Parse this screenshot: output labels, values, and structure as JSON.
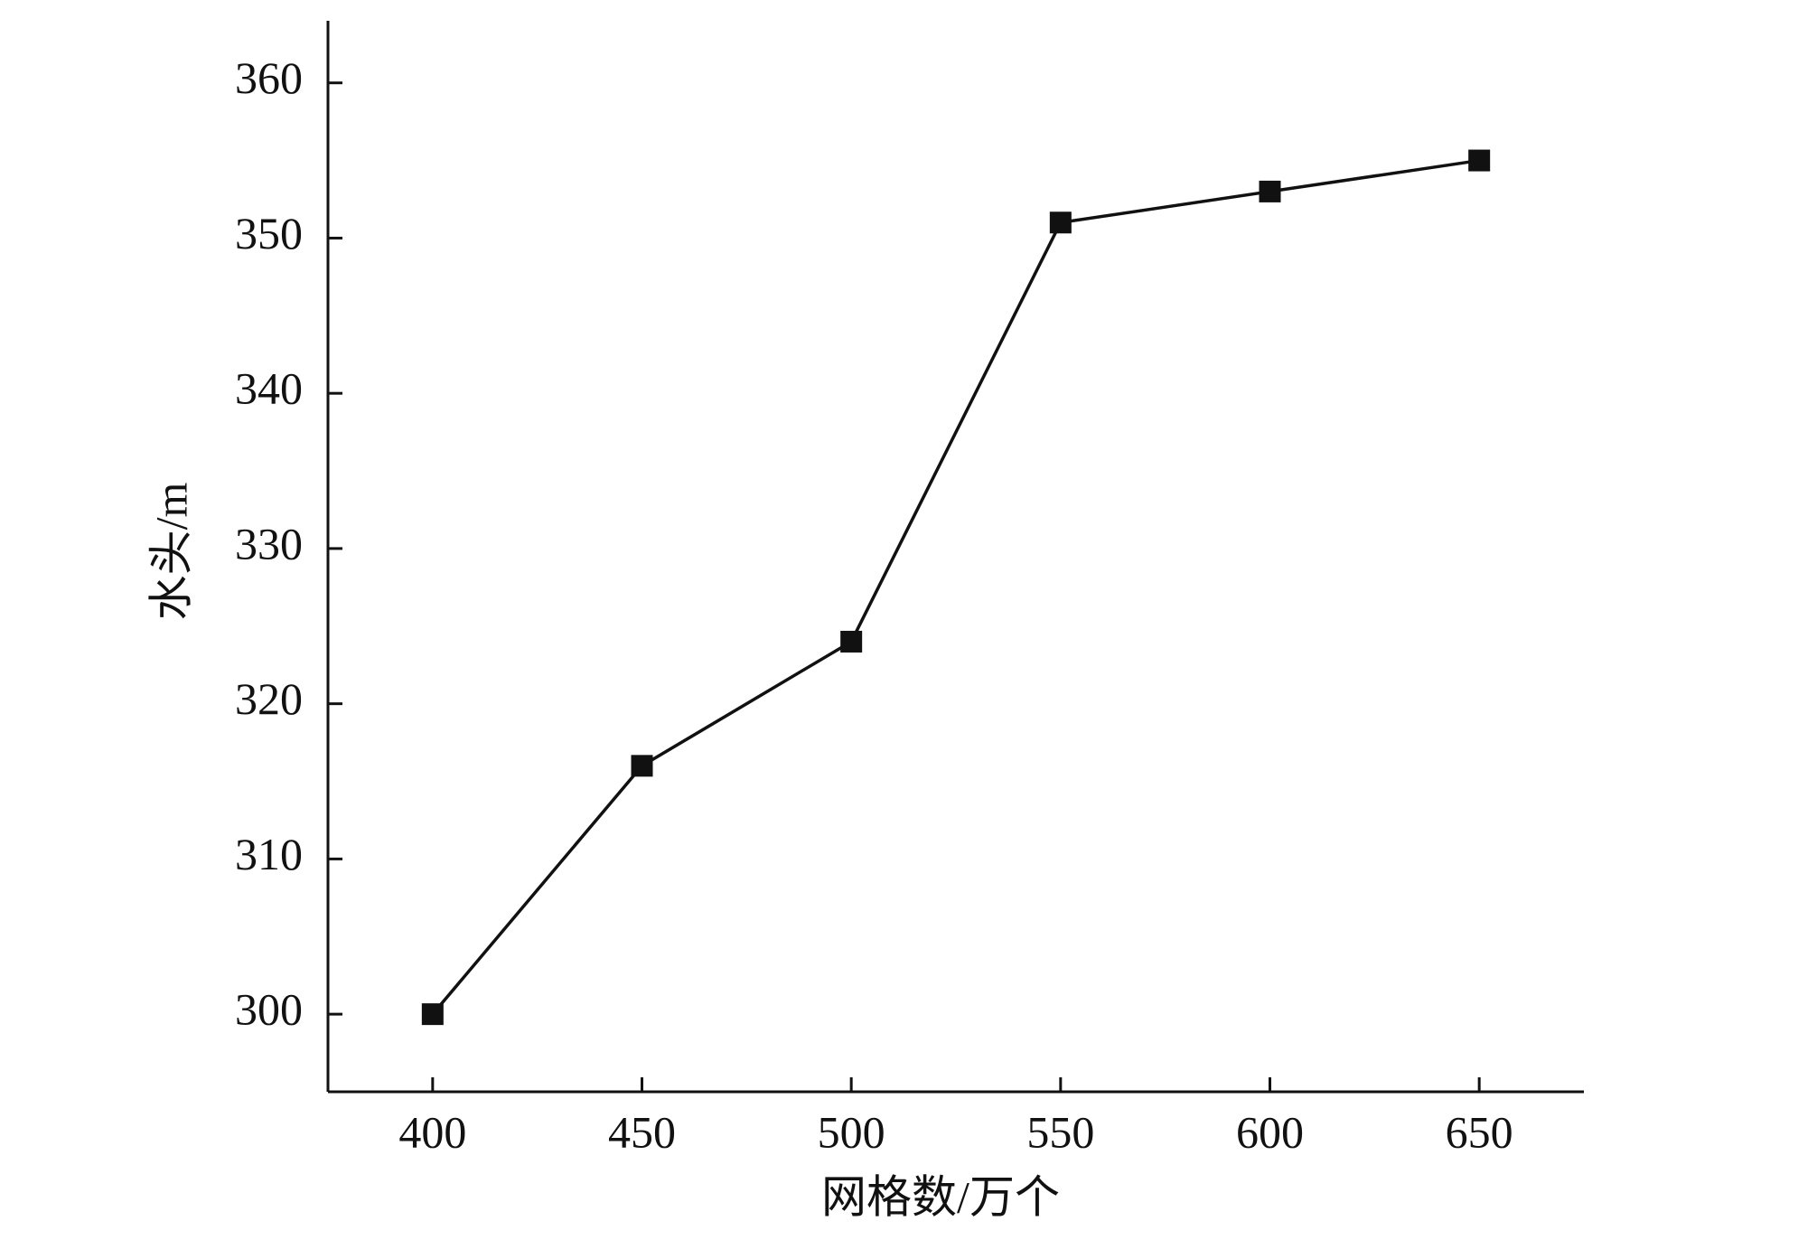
{
  "chart_data": {
    "type": "line",
    "x_label": "网格数/万个",
    "y_label": "水头/m",
    "x": [
      400,
      450,
      500,
      550,
      600,
      650
    ],
    "series": [
      {
        "values": [
          300,
          316,
          324,
          351,
          353,
          355
        ],
        "color": "#111111"
      }
    ],
    "xlim": [
      375,
      675
    ],
    "xticks": [
      400,
      450,
      500,
      550,
      600,
      650
    ],
    "ylim": [
      295,
      364
    ],
    "yticks": [
      300,
      310,
      320,
      330,
      340,
      350,
      360
    ],
    "grid": false
  }
}
